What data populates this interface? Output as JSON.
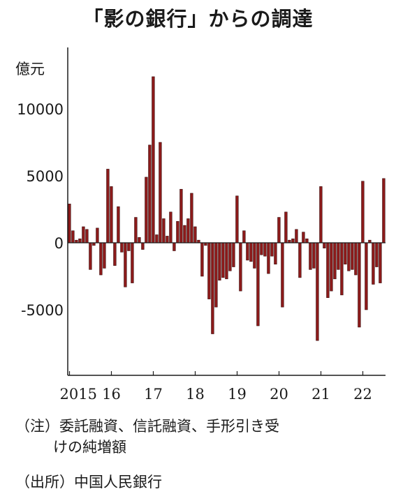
{
  "chart_data": {
    "type": "bar",
    "title": "「影の銀行」からの調達",
    "ylabel": "億元",
    "ylim": [
      -9200,
      14500
    ],
    "yticks": [
      10000,
      5000,
      0,
      -5000
    ],
    "ytick_labels": [
      "10000",
      "5000",
      "0",
      "-5000"
    ],
    "x_start": "2015-01",
    "xtick_labels": [
      "2015",
      "16",
      "17",
      "18",
      "19",
      "20",
      "21",
      "22"
    ],
    "bar_color": "#8b1a1a",
    "series": [
      {
        "values": [
          2900,
          900,
          200,
          300,
          1200,
          1000,
          -2000,
          -200,
          1100,
          -2400,
          -1900,
          5500,
          4200,
          -1700,
          2700,
          -700,
          -3300,
          -600,
          -3000,
          1900,
          400,
          -500,
          4900,
          7300,
          12400,
          600,
          7500,
          1800,
          500,
          2300,
          -600,
          1600,
          4000,
          1300,
          1800,
          3700,
          1200,
          200,
          -2500,
          -200,
          -4200,
          -6800,
          -4800,
          -2800,
          -2600,
          -2700,
          -2100,
          -1800,
          3500,
          -3600,
          900,
          -1300,
          -1400,
          -1900,
          -6200,
          -900,
          -1000,
          -2300,
          -1000,
          -1600,
          1900,
          -4800,
          2300,
          200,
          300,
          1000,
          -2600,
          800,
          300,
          -2000,
          -1900,
          -7300,
          4200,
          -400,
          -4100,
          -3600,
          -2700,
          -2000,
          -3900,
          -1600,
          -2100,
          -2000,
          -2400,
          -6300,
          4600,
          -5000,
          200,
          -3100,
          -1800,
          -3000,
          4800
        ]
      }
    ]
  },
  "notes": {
    "line1": "（注）委託融資、信託融資、手形引き受",
    "line2": "けの純増額",
    "source": "（出所）中国人民銀行"
  }
}
